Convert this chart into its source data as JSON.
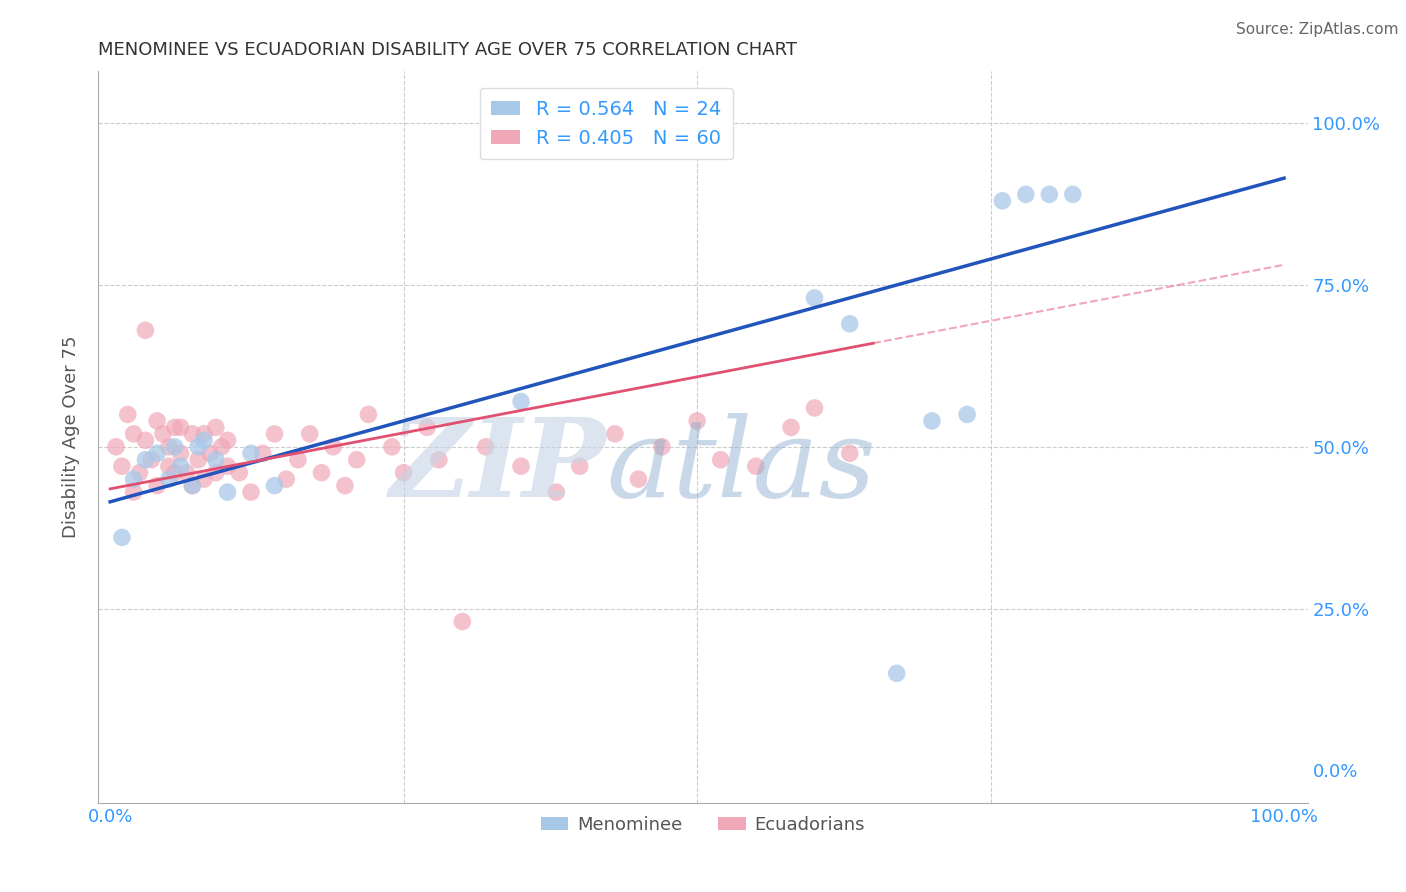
{
  "title": "MENOMINEE VS ECUADORIAN DISABILITY AGE OVER 75 CORRELATION CHART",
  "source": "Source: ZipAtlas.com",
  "ylabel": "Disability Age Over 75",
  "xlabel": "",
  "xlim": [
    0,
    1
  ],
  "ylim": [
    0,
    1
  ],
  "xtick_labels": [
    "0.0%",
    "",
    "",
    "",
    "100.0%"
  ],
  "ytick_labels_right": [
    "0.0%",
    "25.0%",
    "50.0%",
    "75.0%",
    "100.0%"
  ],
  "legend_r1": "R = 0.564",
  "legend_n1": "N = 24",
  "legend_r2": "R = 0.405",
  "legend_n2": "N = 60",
  "color_menominee": "#a8c8e8",
  "color_ecuadorian": "#f0a8b8",
  "color_line_menominee": "#2255bb",
  "color_line_ecuadorian": "#e05070",
  "watermark_zip": "ZIP",
  "watermark_atlas": "atlas",
  "menominee_x": [
    0.01,
    0.02,
    0.03,
    0.04,
    0.05,
    0.055,
    0.06,
    0.07,
    0.075,
    0.08,
    0.09,
    0.1,
    0.12,
    0.14,
    0.35,
    0.6,
    0.63,
    0.67,
    0.7,
    0.73,
    0.76,
    0.78,
    0.8,
    0.82
  ],
  "menominee_y": [
    0.36,
    0.45,
    0.48,
    0.49,
    0.45,
    0.5,
    0.47,
    0.44,
    0.5,
    0.51,
    0.48,
    0.43,
    0.49,
    0.44,
    0.57,
    0.73,
    0.69,
    0.15,
    0.54,
    0.55,
    0.88,
    0.89,
    0.89,
    0.89
  ],
  "ecuadorian_x": [
    0.005,
    0.01,
    0.015,
    0.02,
    0.02,
    0.025,
    0.03,
    0.03,
    0.035,
    0.04,
    0.04,
    0.045,
    0.05,
    0.05,
    0.055,
    0.055,
    0.06,
    0.06,
    0.065,
    0.07,
    0.07,
    0.075,
    0.08,
    0.08,
    0.085,
    0.09,
    0.09,
    0.095,
    0.1,
    0.1,
    0.11,
    0.12,
    0.13,
    0.14,
    0.15,
    0.16,
    0.17,
    0.18,
    0.19,
    0.2,
    0.21,
    0.22,
    0.24,
    0.25,
    0.27,
    0.28,
    0.3,
    0.32,
    0.35,
    0.38,
    0.4,
    0.43,
    0.45,
    0.47,
    0.5,
    0.52,
    0.55,
    0.58,
    0.6,
    0.63
  ],
  "ecuadorian_y": [
    0.5,
    0.47,
    0.55,
    0.43,
    0.52,
    0.46,
    0.68,
    0.51,
    0.48,
    0.44,
    0.54,
    0.52,
    0.47,
    0.5,
    0.46,
    0.53,
    0.49,
    0.53,
    0.46,
    0.44,
    0.52,
    0.48,
    0.45,
    0.52,
    0.49,
    0.46,
    0.53,
    0.5,
    0.47,
    0.51,
    0.46,
    0.43,
    0.49,
    0.52,
    0.45,
    0.48,
    0.52,
    0.46,
    0.5,
    0.44,
    0.48,
    0.55,
    0.5,
    0.46,
    0.53,
    0.48,
    0.23,
    0.5,
    0.47,
    0.43,
    0.47,
    0.52,
    0.45,
    0.5,
    0.54,
    0.48,
    0.47,
    0.53,
    0.56,
    0.49
  ],
  "line_menominee_x0": 0.0,
  "line_menominee_y0": 0.415,
  "line_menominee_x1": 1.0,
  "line_menominee_y1": 0.915,
  "line_ecuadorian_x0": 0.0,
  "line_ecuadorian_y0": 0.435,
  "line_ecuadorian_x1": 0.65,
  "line_ecuadorian_y1": 0.66
}
